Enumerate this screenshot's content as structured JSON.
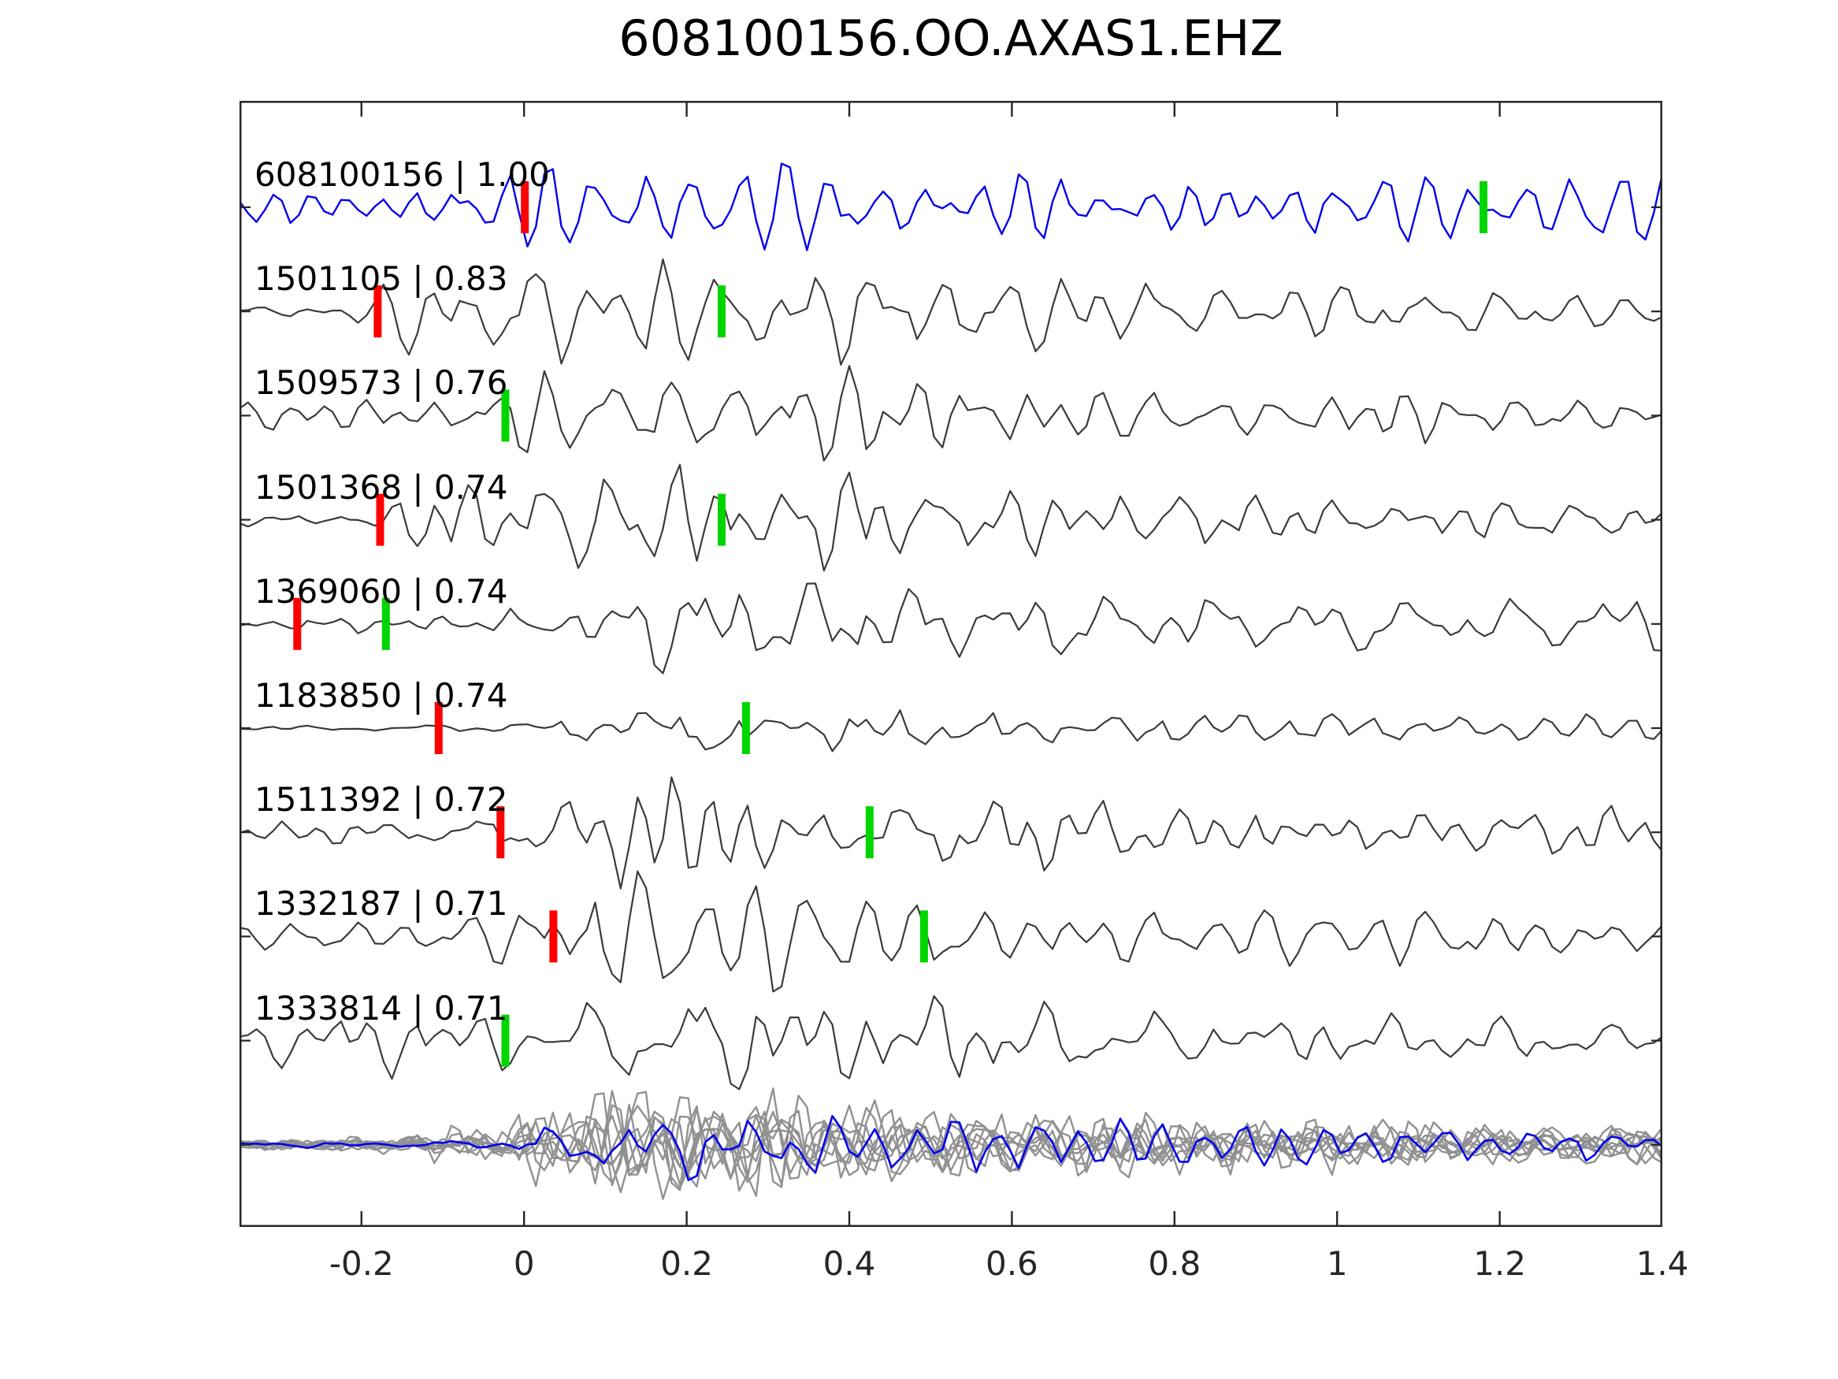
{
  "title": "608100156.OO.AXAS1.EHZ",
  "colors": {
    "template_blue": "#0000ee",
    "trace_gray": "#3a3a3a",
    "stack_gray": "#919191",
    "stack_highlight_blue": "#0000ee",
    "pick_red": "#ff0000",
    "pick_green": "#00d500",
    "axis": "#262626"
  },
  "chart_data": {
    "type": "line",
    "description": "Stacked seismic waveform traces from template-matching detection; each labeled trace shows detection id and correlation value; red bars are template picks, green bars are detection picks; bottom row is the aligned stack of all traces (gray) with the template highlighted in blue.",
    "title": "608100156.OO.AXAS1.EHZ",
    "xlabel": "",
    "ylabel": "",
    "x_range": [
      -0.35,
      1.4
    ],
    "x_ticks": [
      "-0.2",
      "0",
      "0.2",
      "0.4",
      "0.6",
      "0.8",
      "1",
      "1.2",
      "1.4"
    ],
    "x_tick_values": [
      -0.2,
      0,
      0.2,
      0.4,
      0.6,
      0.8,
      1.0,
      1.2,
      1.4
    ],
    "grid": false,
    "legend": false,
    "traces": [
      {
        "id": "608100156",
        "correlation": "1.00",
        "label": "608100156 | 1.00",
        "color": "blue",
        "picks": [
          {
            "color": "red",
            "t": 0.001
          },
          {
            "color": "green",
            "t": 1.18
          }
        ],
        "seed": 11,
        "envelope": [
          [
            -0.35,
            22
          ],
          [
            -0.1,
            26
          ],
          [
            0.0,
            34
          ],
          [
            0.2,
            38
          ],
          [
            0.45,
            36
          ],
          [
            0.7,
            32
          ],
          [
            0.9,
            30
          ],
          [
            1.1,
            26
          ],
          [
            1.25,
            24
          ],
          [
            1.33,
            42
          ],
          [
            1.4,
            26
          ]
        ]
      },
      {
        "id": "1501105",
        "correlation": "0.83",
        "label": "1501105 | 0.83",
        "color": "gray",
        "picks": [
          {
            "color": "red",
            "t": -0.18
          },
          {
            "color": "green",
            "t": 0.243
          }
        ],
        "seed": 22,
        "envelope": [
          [
            -0.35,
            6
          ],
          [
            -0.23,
            7
          ],
          [
            -0.15,
            38
          ],
          [
            -0.05,
            52
          ],
          [
            0.15,
            55
          ],
          [
            0.35,
            48
          ],
          [
            0.55,
            42
          ],
          [
            0.75,
            36
          ],
          [
            0.95,
            28
          ],
          [
            1.15,
            22
          ],
          [
            1.4,
            16
          ]
        ]
      },
      {
        "id": "1509573",
        "correlation": "0.76",
        "label": "1509573 | 0.76",
        "color": "gray",
        "picks": [
          {
            "color": "green",
            "t": -0.023
          }
        ],
        "seed": 33,
        "envelope": [
          [
            -0.35,
            14
          ],
          [
            -0.15,
            16
          ],
          [
            -0.03,
            20
          ],
          [
            0.07,
            58
          ],
          [
            0.22,
            52
          ],
          [
            0.4,
            38
          ],
          [
            0.65,
            28
          ],
          [
            0.95,
            22
          ],
          [
            1.25,
            18
          ],
          [
            1.4,
            16
          ]
        ]
      },
      {
        "id": "1501368",
        "correlation": "0.74",
        "label": "1501368 | 0.74",
        "color": "gray",
        "picks": [
          {
            "color": "red",
            "t": -0.177
          },
          {
            "color": "green",
            "t": 0.243
          }
        ],
        "seed": 44,
        "envelope": [
          [
            -0.35,
            5
          ],
          [
            -0.21,
            6
          ],
          [
            -0.13,
            40
          ],
          [
            -0.02,
            52
          ],
          [
            0.18,
            55
          ],
          [
            0.38,
            46
          ],
          [
            0.6,
            36
          ],
          [
            0.85,
            26
          ],
          [
            1.15,
            20
          ],
          [
            1.4,
            16
          ]
        ]
      },
      {
        "id": "1369060",
        "correlation": "0.74",
        "label": "1369060 | 0.74",
        "color": "gray",
        "picks": [
          {
            "color": "red",
            "t": -0.279
          },
          {
            "color": "green",
            "t": -0.17
          }
        ],
        "seed": 55,
        "envelope": [
          [
            -0.35,
            9
          ],
          [
            -0.2,
            11
          ],
          [
            -0.05,
            13
          ],
          [
            0.08,
            26
          ],
          [
            0.18,
            58
          ],
          [
            0.35,
            48
          ],
          [
            0.6,
            30
          ],
          [
            0.9,
            24
          ],
          [
            1.2,
            22
          ],
          [
            1.4,
            24
          ]
        ]
      },
      {
        "id": "1183850",
        "correlation": "0.74",
        "label": "1183850 | 0.74",
        "color": "gray",
        "picks": [
          {
            "color": "red",
            "t": -0.105
          },
          {
            "color": "green",
            "t": 0.273
          }
        ],
        "seed": 66,
        "envelope": [
          [
            -0.35,
            5
          ],
          [
            -0.18,
            6
          ],
          [
            -0.06,
            9
          ],
          [
            0.08,
            34
          ],
          [
            0.2,
            58
          ],
          [
            0.38,
            50
          ],
          [
            0.55,
            34
          ],
          [
            0.85,
            24
          ],
          [
            1.15,
            20
          ],
          [
            1.4,
            18
          ]
        ]
      },
      {
        "id": "1511392",
        "correlation": "0.72",
        "label": "1511392 | 0.72",
        "color": "gray",
        "picks": [
          {
            "color": "red",
            "t": -0.029
          },
          {
            "color": "green",
            "t": 0.425
          }
        ],
        "seed": 77,
        "envelope": [
          [
            -0.35,
            8
          ],
          [
            -0.15,
            11
          ],
          [
            -0.02,
            22
          ],
          [
            0.12,
            55
          ],
          [
            0.3,
            48
          ],
          [
            0.5,
            34
          ],
          [
            0.75,
            28
          ],
          [
            1.05,
            22
          ],
          [
            1.3,
            20
          ],
          [
            1.4,
            18
          ]
        ]
      },
      {
        "id": "1332187",
        "correlation": "0.71",
        "label": "1332187 | 0.71",
        "color": "gray",
        "picks": [
          {
            "color": "red",
            "t": 0.036
          },
          {
            "color": "green",
            "t": 0.492
          }
        ],
        "seed": 88,
        "envelope": [
          [
            -0.35,
            10
          ],
          [
            -0.12,
            16
          ],
          [
            0.02,
            48
          ],
          [
            0.18,
            55
          ],
          [
            0.4,
            38
          ],
          [
            0.65,
            28
          ],
          [
            0.95,
            24
          ],
          [
            1.2,
            26
          ],
          [
            1.4,
            20
          ]
        ]
      },
      {
        "id": "1333814",
        "correlation": "0.71",
        "label": "1333814 | 0.71",
        "color": "gray",
        "picks": [
          {
            "color": "green",
            "t": -0.023
          }
        ],
        "seed": 99,
        "envelope": [
          [
            -0.35,
            16
          ],
          [
            -0.25,
            26
          ],
          [
            -0.1,
            28
          ],
          [
            0.05,
            42
          ],
          [
            0.25,
            50
          ],
          [
            0.45,
            40
          ],
          [
            0.65,
            34
          ],
          [
            0.85,
            30
          ],
          [
            1.05,
            20
          ],
          [
            1.4,
            18
          ]
        ]
      }
    ],
    "stack": {
      "gray_trace_count": 9,
      "has_blue_highlight": true,
      "seed": 201,
      "envelope": [
        [
          -0.35,
          5
        ],
        [
          -0.15,
          7
        ],
        [
          0.0,
          22
        ],
        [
          0.12,
          52
        ],
        [
          0.3,
          46
        ],
        [
          0.5,
          28
        ],
        [
          0.75,
          26
        ],
        [
          1.0,
          22
        ],
        [
          1.2,
          18
        ],
        [
          1.4,
          20
        ]
      ]
    }
  }
}
